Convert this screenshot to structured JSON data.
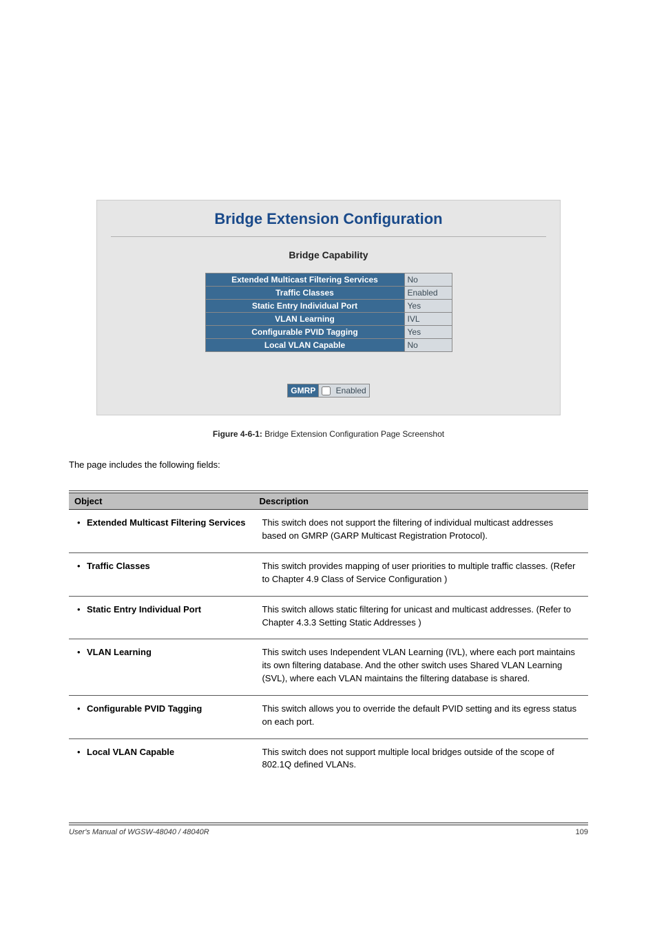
{
  "panel": {
    "title": "Bridge Extension Configuration",
    "subtitle": "Bridge Capability",
    "rows": [
      {
        "label": "Extended Multicast Filtering Services",
        "value": "No"
      },
      {
        "label": "Traffic Classes",
        "value": "Enabled"
      },
      {
        "label": "Static Entry Individual Port",
        "value": "Yes"
      },
      {
        "label": "VLAN Learning",
        "value": "IVL"
      },
      {
        "label": "Configurable PVID Tagging",
        "value": "Yes"
      },
      {
        "label": "Local VLAN Capable",
        "value": "No"
      }
    ],
    "gmrp": {
      "label": "GMRP",
      "checkbox_label": "Enabled",
      "checked": false
    },
    "colors": {
      "panel_bg": "#e6e6e6",
      "title_color": "#1a4a8a",
      "header_cell_bg": "#396a93",
      "header_cell_fg": "#ffffff",
      "value_cell_bg": "#d6dbe0",
      "value_cell_fg": "#3a4a55",
      "border": "#888888"
    }
  },
  "figure_caption": {
    "bold": "Figure 4-6-1:",
    "rest": " Bridge Extension Configuration Page Screenshot"
  },
  "intro_line": "The page includes the following fields:",
  "doc_table": {
    "headers": [
      "Object",
      "Description"
    ],
    "rows": [
      {
        "obj": "Extended Multicast Filtering Services",
        "desc": "This switch does not support the filtering of individual multicast addresses based on GMRP (GARP Multicast Registration Protocol)."
      },
      {
        "obj": "Traffic Classes",
        "desc": "This switch provides mapping of user priorities to multiple traffic classes. (Refer to Chapter 4.9 Class of Service Configuration )"
      },
      {
        "obj": "Static Entry Individual Port",
        "desc": "This switch allows static filtering for unicast and multicast addresses. (Refer to Chapter 4.3.3 Setting Static Addresses )"
      },
      {
        "obj": "VLAN Learning",
        "desc": "This switch uses Independent VLAN Learning (IVL), where each port maintains its own filtering database. And the other switch uses Shared VLAN Learning (SVL), where each VLAN maintains the filtering database is shared."
      },
      {
        "obj": "Configurable PVID Tagging",
        "desc": "This switch allows you to override the default PVID setting and its egress status on each port."
      },
      {
        "obj": "Local VLAN Capable",
        "desc": "This switch does not support multiple local bridges outside of the scope of 802.1Q defined VLANs."
      }
    ]
  },
  "footer": {
    "left": "User's Manual of WGSW-48040 / 48040R",
    "page": "109"
  }
}
